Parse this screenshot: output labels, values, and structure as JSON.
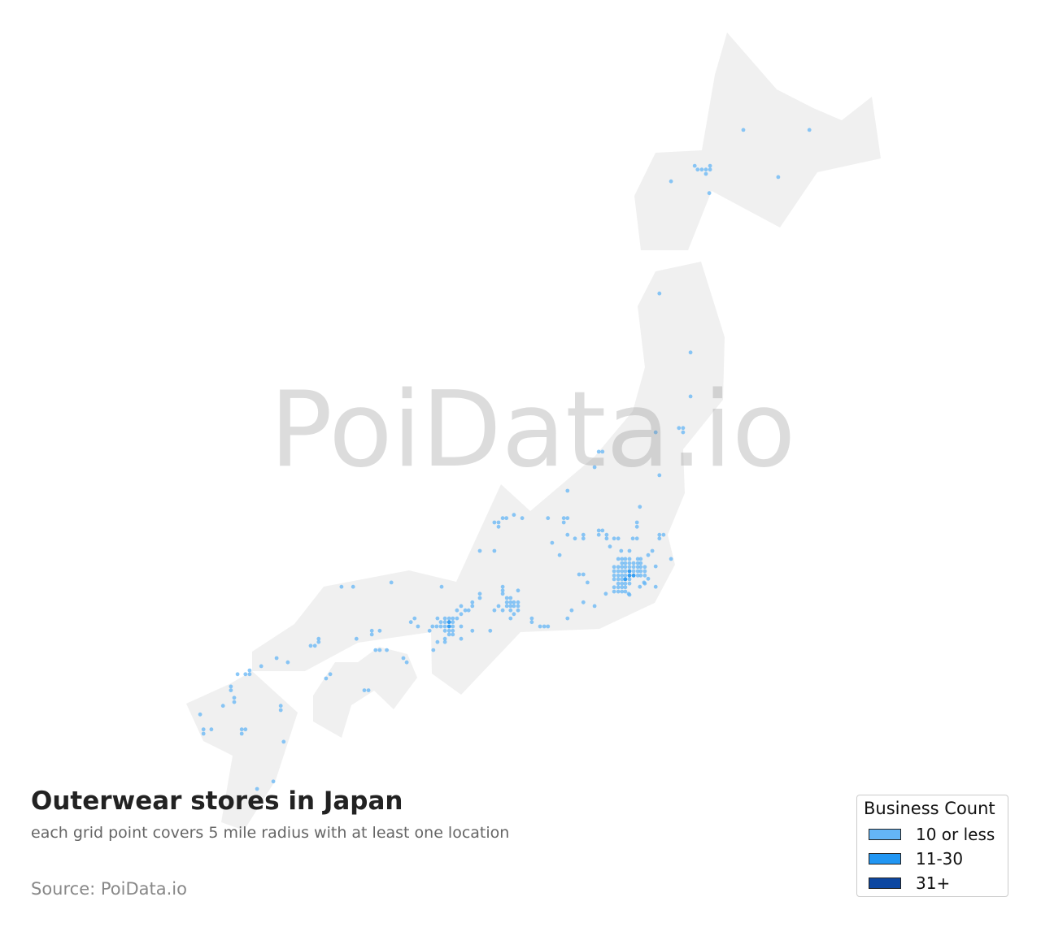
{
  "title": "Outerwear stores in Japan",
  "subtitle": "each grid point covers 5 mile radius with at least one location",
  "source": "Source: PoiData.io",
  "watermark": "PoiData.io",
  "colors": {
    "land": "#f0f0f0",
    "tier1": "#64b5f6",
    "tier2": "#2196f3",
    "tier3": "#0d47a1"
  },
  "legend": {
    "title": "Business Count",
    "items": [
      {
        "label": "10 or less",
        "color": "#64b5f6"
      },
      {
        "label": "11-30",
        "color": "#2196f3"
      },
      {
        "label": "31+",
        "color": "#0d47a1"
      }
    ]
  },
  "chart_data": {
    "type": "scatter",
    "title": "Outerwear stores in Japan",
    "point_format": [
      "lon",
      "lat",
      "tier"
    ],
    "tiers": {
      "1": "10 or less",
      "2": "11-30",
      "3": "31+"
    },
    "points": [
      [
        142.42,
        43.99,
        1
      ],
      [
        144.01,
        43.99,
        1
      ],
      [
        143.26,
        43.11,
        1
      ],
      [
        140.68,
        43.03,
        1
      ],
      [
        141.25,
        43.32,
        1
      ],
      [
        141.32,
        43.25,
        1
      ],
      [
        141.42,
        43.25,
        1
      ],
      [
        141.52,
        43.25,
        1
      ],
      [
        141.62,
        43.25,
        1
      ],
      [
        141.62,
        43.32,
        1
      ],
      [
        141.52,
        43.17,
        1
      ],
      [
        141.6,
        42.81,
        1
      ],
      [
        140.4,
        40.94,
        1
      ],
      [
        141.15,
        39.84,
        1
      ],
      [
        141.15,
        39.02,
        1
      ],
      [
        140.87,
        38.43,
        1
      ],
      [
        140.97,
        38.43,
        1
      ],
      [
        140.97,
        38.35,
        1
      ],
      [
        140.31,
        38.35,
        1
      ],
      [
        138.94,
        37.99,
        1
      ],
      [
        139.03,
        37.99,
        1
      ],
      [
        138.84,
        37.7,
        1
      ],
      [
        140.4,
        37.55,
        1
      ],
      [
        138.19,
        37.26,
        1
      ],
      [
        139.93,
        36.96,
        1
      ],
      [
        136.43,
        36.67,
        1
      ],
      [
        136.53,
        36.67,
        1
      ],
      [
        136.53,
        36.59,
        1
      ],
      [
        136.63,
        36.75,
        1
      ],
      [
        136.72,
        36.75,
        1
      ],
      [
        136.9,
        36.81,
        1
      ],
      [
        137.1,
        36.75,
        1
      ],
      [
        137.72,
        36.75,
        1
      ],
      [
        138.1,
        36.75,
        1
      ],
      [
        138.19,
        36.75,
        1
      ],
      [
        138.1,
        36.67,
        1
      ],
      [
        138.19,
        36.44,
        1
      ],
      [
        137.82,
        36.29,
        1
      ],
      [
        138.37,
        36.37,
        1
      ],
      [
        138.57,
        36.44,
        1
      ],
      [
        138.57,
        36.37,
        1
      ],
      [
        138.94,
        36.52,
        1
      ],
      [
        139.03,
        36.52,
        1
      ],
      [
        138.94,
        36.44,
        1
      ],
      [
        139.13,
        36.44,
        1
      ],
      [
        139.13,
        36.37,
        1
      ],
      [
        139.31,
        36.37,
        1
      ],
      [
        139.41,
        36.37,
        1
      ],
      [
        139.21,
        36.22,
        1
      ],
      [
        139.86,
        36.67,
        1
      ],
      [
        139.86,
        36.59,
        1
      ],
      [
        139.76,
        36.37,
        1
      ],
      [
        139.86,
        36.37,
        1
      ],
      [
        140.4,
        36.44,
        1
      ],
      [
        140.5,
        36.44,
        1
      ],
      [
        140.4,
        36.37,
        1
      ],
      [
        140.23,
        36.14,
        1
      ],
      [
        140.13,
        36.06,
        1
      ],
      [
        140.68,
        35.99,
        1
      ],
      [
        139.48,
        36.14,
        1
      ],
      [
        139.68,
        36.14,
        1
      ],
      [
        138.0,
        36.06,
        1
      ],
      [
        136.08,
        36.14,
        1
      ],
      [
        136.43,
        36.14,
        1
      ],
      [
        138.47,
        35.7,
        1
      ],
      [
        138.57,
        35.7,
        1
      ],
      [
        138.67,
        35.55,
        1
      ],
      [
        138.57,
        35.18,
        1
      ],
      [
        138.84,
        35.11,
        1
      ],
      [
        139.11,
        35.34,
        1
      ],
      [
        138.29,
        35.03,
        1
      ],
      [
        138.19,
        34.88,
        1
      ],
      [
        137.53,
        34.73,
        1
      ],
      [
        137.63,
        34.73,
        1
      ],
      [
        137.72,
        34.73,
        1
      ],
      [
        137.33,
        34.88,
        1
      ],
      [
        137.33,
        34.81,
        1
      ],
      [
        140.31,
        35.85,
        1
      ],
      [
        140.31,
        35.47,
        1
      ],
      [
        140.13,
        35.62,
        1
      ],
      [
        140.03,
        35.55,
        1
      ],
      [
        139.93,
        35.47,
        1
      ],
      [
        139.66,
        35.34,
        1
      ],
      [
        140.05,
        35.53,
        1
      ],
      [
        139.41,
        35.99,
        1
      ],
      [
        139.5,
        35.99,
        1
      ],
      [
        139.58,
        35.99,
        1
      ],
      [
        139.68,
        35.99,
        1
      ],
      [
        139.88,
        35.99,
        1
      ],
      [
        139.95,
        35.99,
        1
      ],
      [
        139.5,
        35.91,
        1
      ],
      [
        139.58,
        35.91,
        1
      ],
      [
        139.68,
        35.91,
        1
      ],
      [
        139.78,
        35.91,
        1
      ],
      [
        139.88,
        35.91,
        1
      ],
      [
        139.95,
        35.91,
        1
      ],
      [
        139.31,
        35.84,
        1
      ],
      [
        139.41,
        35.84,
        1
      ],
      [
        139.5,
        35.84,
        1
      ],
      [
        139.58,
        35.84,
        1
      ],
      [
        139.68,
        35.84,
        1
      ],
      [
        139.78,
        35.84,
        1
      ],
      [
        139.88,
        35.84,
        1
      ],
      [
        139.95,
        35.84,
        1
      ],
      [
        140.05,
        35.84,
        1
      ],
      [
        139.31,
        35.76,
        1
      ],
      [
        139.41,
        35.76,
        1
      ],
      [
        139.5,
        35.76,
        1
      ],
      [
        139.58,
        35.76,
        1
      ],
      [
        139.68,
        35.76,
        2
      ],
      [
        139.78,
        35.76,
        1
      ],
      [
        139.88,
        35.76,
        1
      ],
      [
        139.95,
        35.76,
        1
      ],
      [
        140.05,
        35.76,
        1
      ],
      [
        139.31,
        35.68,
        1
      ],
      [
        139.41,
        35.68,
        1
      ],
      [
        139.5,
        35.68,
        1
      ],
      [
        139.58,
        35.68,
        1
      ],
      [
        139.68,
        35.68,
        2
      ],
      [
        139.78,
        35.68,
        2
      ],
      [
        139.88,
        35.68,
        1
      ],
      [
        139.95,
        35.68,
        1
      ],
      [
        140.05,
        35.68,
        1
      ],
      [
        139.31,
        35.61,
        1
      ],
      [
        139.41,
        35.61,
        1
      ],
      [
        139.5,
        35.61,
        1
      ],
      [
        139.58,
        35.61,
        2
      ],
      [
        139.68,
        35.61,
        1
      ],
      [
        139.41,
        35.53,
        1
      ],
      [
        139.5,
        35.53,
        1
      ],
      [
        139.58,
        35.53,
        1
      ],
      [
        139.68,
        35.53,
        1
      ],
      [
        139.31,
        35.46,
        1
      ],
      [
        139.41,
        35.46,
        1
      ],
      [
        139.5,
        35.46,
        1
      ],
      [
        139.58,
        35.46,
        1
      ],
      [
        139.31,
        35.38,
        1
      ],
      [
        139.41,
        35.38,
        1
      ],
      [
        139.5,
        35.38,
        1
      ],
      [
        139.58,
        35.38,
        1
      ],
      [
        139.68,
        35.32,
        1
      ],
      [
        136.63,
        35.47,
        1
      ],
      [
        136.63,
        35.4,
        1
      ],
      [
        136.63,
        35.34,
        1
      ],
      [
        136.73,
        35.26,
        1
      ],
      [
        136.82,
        35.26,
        1
      ],
      [
        136.73,
        35.18,
        1
      ],
      [
        136.82,
        35.18,
        1
      ],
      [
        136.9,
        35.18,
        1
      ],
      [
        137.0,
        35.18,
        1
      ],
      [
        137.0,
        35.4,
        1
      ],
      [
        136.73,
        35.11,
        1
      ],
      [
        136.82,
        35.11,
        1
      ],
      [
        136.9,
        35.11,
        1
      ],
      [
        137.0,
        35.11,
        1
      ],
      [
        136.63,
        35.03,
        1
      ],
      [
        136.82,
        35.03,
        1
      ],
      [
        137.0,
        35.03,
        1
      ],
      [
        136.43,
        35.03,
        1
      ],
      [
        136.53,
        35.11,
        1
      ],
      [
        136.33,
        34.65,
        1
      ],
      [
        136.82,
        34.88,
        1
      ],
      [
        136.9,
        34.96,
        1
      ],
      [
        135.24,
        34.88,
        1
      ],
      [
        135.34,
        34.88,
        1
      ],
      [
        135.43,
        34.88,
        1
      ],
      [
        135.24,
        34.81,
        1
      ],
      [
        135.34,
        34.81,
        2
      ],
      [
        135.43,
        34.81,
        1
      ],
      [
        135.14,
        34.73,
        1
      ],
      [
        135.24,
        34.73,
        1
      ],
      [
        135.34,
        34.73,
        2
      ],
      [
        135.43,
        34.73,
        1
      ],
      [
        135.24,
        34.65,
        1
      ],
      [
        135.34,
        34.65,
        1
      ],
      [
        135.43,
        34.65,
        1
      ],
      [
        135.34,
        34.58,
        1
      ],
      [
        135.43,
        34.58,
        1
      ],
      [
        135.24,
        34.5,
        1
      ],
      [
        135.24,
        34.44,
        1
      ],
      [
        135.06,
        34.44,
        1
      ],
      [
        134.96,
        34.29,
        1
      ],
      [
        135.04,
        34.73,
        1
      ],
      [
        134.94,
        34.73,
        1
      ],
      [
        134.87,
        34.65,
        1
      ],
      [
        135.14,
        34.81,
        1
      ],
      [
        135.06,
        34.88,
        1
      ],
      [
        135.53,
        34.88,
        1
      ],
      [
        135.63,
        34.96,
        1
      ],
      [
        135.73,
        35.03,
        1
      ],
      [
        135.81,
        35.03,
        1
      ],
      [
        135.9,
        35.11,
        1
      ],
      [
        135.9,
        35.18,
        1
      ],
      [
        135.63,
        35.11,
        1
      ],
      [
        135.53,
        35.03,
        1
      ],
      [
        136.08,
        35.26,
        1
      ],
      [
        136.08,
        35.34,
        1
      ],
      [
        135.63,
        34.73,
        1
      ],
      [
        135.9,
        34.65,
        1
      ],
      [
        135.63,
        34.5,
        1
      ],
      [
        134.59,
        34.73,
        1
      ],
      [
        134.42,
        34.81,
        1
      ],
      [
        134.51,
        34.88,
        1
      ],
      [
        135.16,
        35.47,
        1
      ],
      [
        133.95,
        35.55,
        1
      ],
      [
        132.75,
        35.47,
        1
      ],
      [
        133.03,
        35.47,
        1
      ],
      [
        133.48,
        34.65,
        1
      ],
      [
        133.48,
        34.58,
        1
      ],
      [
        133.67,
        34.65,
        1
      ],
      [
        133.11,
        34.5,
        1
      ],
      [
        132.2,
        34.5,
        1
      ],
      [
        132.2,
        34.44,
        1
      ],
      [
        132.11,
        34.37,
        1
      ],
      [
        132.01,
        34.37,
        1
      ],
      [
        131.46,
        34.06,
        1
      ],
      [
        131.19,
        34.14,
        1
      ],
      [
        130.82,
        33.99,
        1
      ],
      [
        130.54,
        33.91,
        1
      ],
      [
        130.54,
        33.84,
        1
      ],
      [
        130.44,
        33.84,
        1
      ],
      [
        130.25,
        33.84,
        1
      ],
      [
        130.09,
        33.61,
        1
      ],
      [
        130.09,
        33.54,
        1
      ],
      [
        130.17,
        33.4,
        1
      ],
      [
        130.17,
        33.32,
        1
      ],
      [
        129.9,
        33.25,
        1
      ],
      [
        129.35,
        33.09,
        1
      ],
      [
        129.62,
        32.81,
        1
      ],
      [
        129.43,
        32.81,
        1
      ],
      [
        129.43,
        32.73,
        1
      ],
      [
        130.35,
        32.81,
        1
      ],
      [
        130.44,
        32.81,
        1
      ],
      [
        130.35,
        32.73,
        1
      ],
      [
        131.29,
        33.25,
        1
      ],
      [
        131.29,
        33.17,
        1
      ],
      [
        131.36,
        32.58,
        1
      ],
      [
        131.11,
        31.84,
        1
      ],
      [
        130.72,
        31.7,
        1
      ],
      [
        133.57,
        34.29,
        1
      ],
      [
        133.67,
        34.29,
        1
      ],
      [
        133.84,
        34.29,
        1
      ],
      [
        134.24,
        34.14,
        1
      ],
      [
        134.32,
        34.06,
        1
      ],
      [
        132.38,
        33.76,
        1
      ],
      [
        132.48,
        33.84,
        1
      ],
      [
        133.3,
        33.54,
        1
      ],
      [
        133.4,
        33.54,
        1
      ]
    ]
  }
}
